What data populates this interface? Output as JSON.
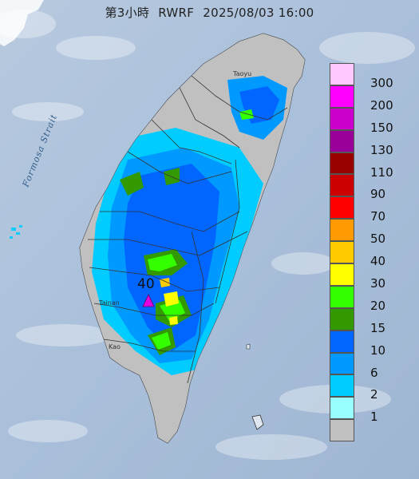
{
  "header": {
    "title_period": "第3小時",
    "title_model": "RWRF",
    "title_datetime": "2025/08/03 16:00"
  },
  "map": {
    "strait_label": "Formosa Strait",
    "places": [
      "Taoyu",
      "Tainan",
      "Kao"
    ],
    "max_marker": {
      "value": "40",
      "symbol": "triangle",
      "color": "#e000e0"
    }
  },
  "legend": {
    "items": [
      {
        "label": "300",
        "color": "#ffc8ff"
      },
      {
        "label": "200",
        "color": "#ff00ff"
      },
      {
        "label": "150",
        "color": "#cc00cc"
      },
      {
        "label": "130",
        "color": "#990099"
      },
      {
        "label": "110",
        "color": "#990000"
      },
      {
        "label": "90",
        "color": "#cc0000"
      },
      {
        "label": "70",
        "color": "#ff0000"
      },
      {
        "label": "50",
        "color": "#ff9900"
      },
      {
        "label": "40",
        "color": "#ffcc00"
      },
      {
        "label": "30",
        "color": "#ffff00"
      },
      {
        "label": "20",
        "color": "#33ff00"
      },
      {
        "label": "15",
        "color": "#339900"
      },
      {
        "label": "10",
        "color": "#0066ff"
      },
      {
        "label": "6",
        "color": "#0099ff"
      },
      {
        "label": "2",
        "color": "#00ccff"
      },
      {
        "label": "1",
        "color": "#99ffff"
      },
      {
        "label": "",
        "color": "#c0c0c0"
      }
    ]
  }
}
